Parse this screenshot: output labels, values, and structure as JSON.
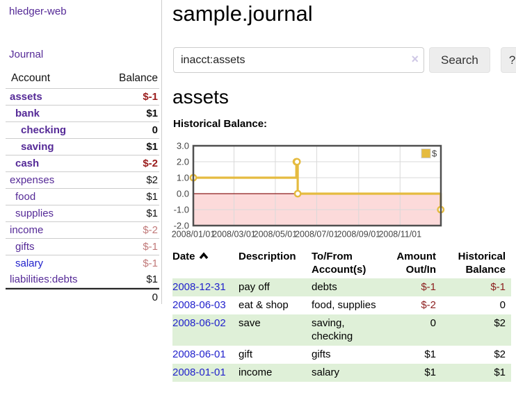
{
  "app": {
    "title": "hledger-web",
    "nav_journal": "Journal"
  },
  "sidebar": {
    "header": {
      "account": "Account",
      "balance": "Balance"
    },
    "rows": [
      {
        "label": "assets",
        "balance": "$-1",
        "indent": 1,
        "bold": true,
        "neg": "strong",
        "link": "purple"
      },
      {
        "label": "bank",
        "balance": "$1",
        "indent": 2,
        "bold": true,
        "neg": "none",
        "link": "purple"
      },
      {
        "label": "checking",
        "balance": "0",
        "indent": 3,
        "bold": true,
        "neg": "none",
        "link": "purple"
      },
      {
        "label": "saving",
        "balance": "$1",
        "indent": 3,
        "bold": true,
        "neg": "none",
        "link": "purple"
      },
      {
        "label": "cash",
        "balance": "$-2",
        "indent": 2,
        "bold": true,
        "neg": "strong",
        "link": "purple"
      },
      {
        "label": "expenses",
        "balance": "$2",
        "indent": 1,
        "bold": false,
        "neg": "none",
        "link": "purple"
      },
      {
        "label": "food",
        "balance": "$1",
        "indent": 2,
        "bold": false,
        "neg": "none",
        "link": "purple"
      },
      {
        "label": "supplies",
        "balance": "$1",
        "indent": 2,
        "bold": false,
        "neg": "none",
        "link": "purple"
      },
      {
        "label": "income",
        "balance": "$-2",
        "indent": 1,
        "bold": false,
        "neg": "soft",
        "link": "purple"
      },
      {
        "label": "gifts",
        "balance": "$-1",
        "indent": 2,
        "bold": false,
        "neg": "soft",
        "link": "purple"
      },
      {
        "label": "salary",
        "balance": "$-1",
        "indent": 2,
        "bold": false,
        "neg": "soft",
        "link": "blue"
      },
      {
        "label": "liabilities:debts",
        "balance": "$1",
        "indent": 1,
        "bold": false,
        "neg": "none",
        "link": "purple"
      }
    ],
    "total": "0"
  },
  "header": {
    "title": "sample.journal"
  },
  "search": {
    "value": "inacct:assets",
    "clear_icon": "×",
    "button": "Search",
    "help": "?"
  },
  "main": {
    "heading": "assets",
    "chart_label": "Historical Balance:"
  },
  "chart_data": {
    "type": "line",
    "subtype": "step",
    "title": "Historical Balance",
    "series": [
      {
        "name": "$",
        "color": "#e5bb3f",
        "points": [
          [
            "2008-01-01",
            1
          ],
          [
            "2008-06-01",
            2
          ],
          [
            "2008-06-02",
            2
          ],
          [
            "2008-06-03",
            0
          ],
          [
            "2008-12-31",
            -1
          ]
        ]
      }
    ],
    "x_start": "2008-01-01",
    "xlim_months": [
      0,
      12
    ],
    "ylim": [
      -2,
      3
    ],
    "y_ticks": [
      "3.0",
      "2.0",
      "1.0",
      "0.0",
      "-1.0",
      "-2.0"
    ],
    "x_ticks": [
      "2008/01/01",
      "2008/03/01",
      "2008/05/01",
      "2008/07/01",
      "2008/09/01",
      "2008/11/01"
    ],
    "legend": "$",
    "legend_position": "top-right",
    "grid": true,
    "negative_region_color": "#fcdada",
    "zero_line_color": "#8b1a1a",
    "grid_color": "#d9d9d9",
    "border_color": "#4f4f4f",
    "tick_color": "#444444"
  },
  "table": {
    "headers": [
      {
        "label": "Date",
        "sorted": "asc"
      },
      {
        "label": "Description"
      },
      {
        "label": "To/From Account(s)"
      },
      {
        "label": "Amount Out/In",
        "align": "right"
      },
      {
        "label": "Historical Balance",
        "align": "right"
      }
    ],
    "rows": [
      {
        "date": "2008-12-31",
        "description": "pay off",
        "accounts": "debts",
        "amount": "$-1",
        "balance": "$-1"
      },
      {
        "date": "2008-06-03",
        "description": "eat & shop",
        "accounts": "food, supplies",
        "amount": "$-2",
        "balance": "0"
      },
      {
        "date": "2008-06-02",
        "description": "save",
        "accounts": "saving, checking",
        "amount": "0",
        "balance": "$2"
      },
      {
        "date": "2008-06-01",
        "description": "gift",
        "accounts": "gifts",
        "amount": "$1",
        "balance": "$2"
      },
      {
        "date": "2008-01-01",
        "description": "income",
        "accounts": "salary",
        "amount": "$1",
        "balance": "$1"
      }
    ]
  }
}
